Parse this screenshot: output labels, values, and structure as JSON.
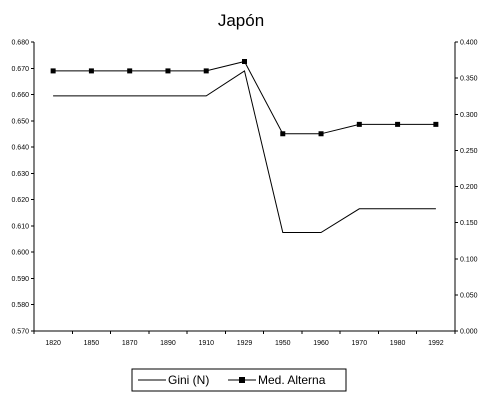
{
  "chart_data": {
    "type": "line",
    "title": "Japón",
    "categories": [
      "1820",
      "1850",
      "1870",
      "1890",
      "1910",
      "1929",
      "1950",
      "1960",
      "1970",
      "1980",
      "1992"
    ],
    "y_left": {
      "min": 0.57,
      "max": 0.68,
      "step": 0.01,
      "tick_labels": [
        "0.570",
        "0.580",
        "0.590",
        "0.600",
        "0.610",
        "0.620",
        "0.630",
        "0.640",
        "0.650",
        "0.660",
        "0.670",
        "0.680"
      ]
    },
    "y_right": {
      "min": 0.0,
      "max": 0.4,
      "step": 0.05,
      "tick_labels": [
        "0.000",
        "0.050",
        "0.100",
        "0.150",
        "0.200",
        "0.250",
        "0.300",
        "0.350",
        "0.400"
      ]
    },
    "series": [
      {
        "name": "Gini (N)",
        "axis": "left",
        "marker": "none",
        "color": "#000000",
        "values": [
          0.6595,
          0.6595,
          0.6595,
          0.6595,
          0.6595,
          0.669,
          0.6075,
          0.6075,
          0.6165,
          0.6165,
          0.6165
        ]
      },
      {
        "name": "Med. Alterna",
        "axis": "right",
        "marker": "square",
        "color": "#000000",
        "values": [
          0.36,
          0.36,
          0.36,
          0.36,
          0.36,
          0.373,
          0.273,
          0.273,
          0.286,
          0.286,
          0.286
        ]
      }
    ],
    "grid": false,
    "legend_position": "bottom"
  }
}
